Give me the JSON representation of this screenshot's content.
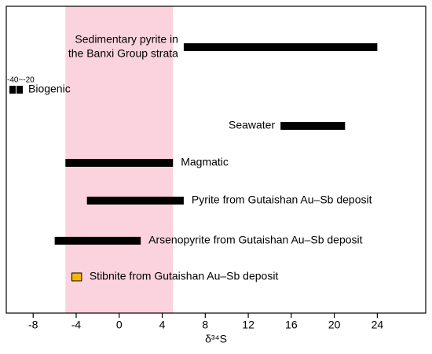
{
  "chart_data": {
    "type": "range_bar",
    "xlabel": "δ³⁴S",
    "xlim": [
      -10.5,
      28.5
    ],
    "xticks": [
      -8,
      -4,
      0,
      4,
      8,
      12,
      16,
      20,
      24
    ],
    "band": [
      -5,
      5
    ],
    "band_color": "#fbd3de",
    "categories": [
      [
        "Sedimentary pyrite in",
        "the Banxi Group strata"
      ],
      [
        "Biogenic"
      ],
      [
        "Seawater"
      ],
      [
        "Magmatic"
      ],
      [
        "Pyrite from Gutaishan Au–Sb deposit"
      ],
      [
        "Arsenopyrite from Gutaishan Au–Sb deposit"
      ],
      [
        "Stibnite from Gutaishan Au–Sb deposit"
      ]
    ],
    "ranges": [
      [
        6,
        24
      ],
      [
        -40,
        -20
      ],
      [
        15,
        21
      ],
      [
        -5,
        5
      ],
      [
        -3,
        6
      ],
      [
        -6,
        2
      ],
      [
        -4.4,
        -3.5
      ]
    ],
    "value_labels": [
      null,
      "-40~-20",
      null,
      null,
      null,
      null,
      null
    ],
    "colors": [
      "#000000",
      "#000000",
      "#000000",
      "#000000",
      "#000000",
      "#000000",
      "#f5b800"
    ]
  }
}
